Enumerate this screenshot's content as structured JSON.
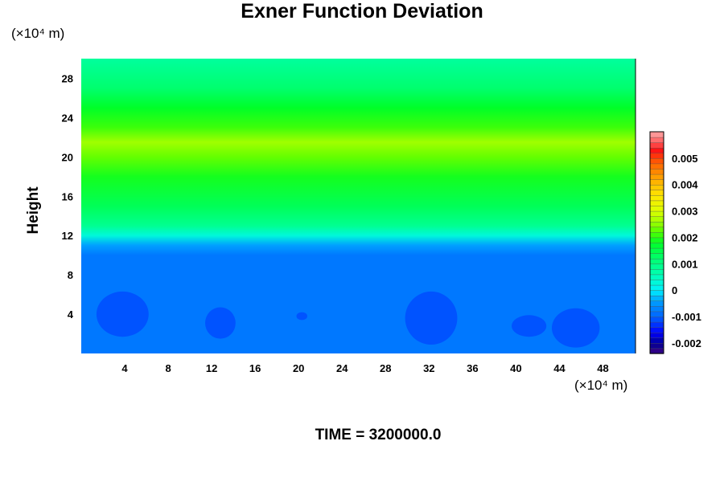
{
  "chart_data": {
    "type": "heatmap",
    "title": "Exner Function Deviation",
    "ylabel": "Height",
    "xlabel": "",
    "x_unit": "(×10⁴ m)",
    "y_unit": "(×10⁴ m)",
    "footer": "TIME = 3200000.0",
    "xlim": [
      0,
      51
    ],
    "ylim": [
      0,
      30
    ],
    "x_ticks": [
      "4",
      "8",
      "12",
      "16",
      "20",
      "24",
      "28",
      "32",
      "36",
      "40",
      "44",
      "48"
    ],
    "y_ticks": [
      "4",
      "8",
      "12",
      "16",
      "20",
      "24",
      "28"
    ],
    "colorbar": {
      "range": [
        -0.0024,
        0.006
      ],
      "ticks": [
        "0.005",
        "0.004",
        "0.003",
        "0.002",
        "0.001",
        "0",
        "-0.001",
        "-0.002"
      ],
      "tick_values": [
        0.005,
        0.004,
        0.003,
        0.002,
        0.001,
        0,
        -0.001,
        -0.002
      ]
    },
    "vertical_profile": [
      {
        "height": 0,
        "value": -0.0008
      },
      {
        "height": 10,
        "value": -0.0008
      },
      {
        "height": 11,
        "value": -0.0004
      },
      {
        "height": 12,
        "value": 0.0003
      },
      {
        "height": 13,
        "value": 0.0009
      },
      {
        "height": 15,
        "value": 0.0014
      },
      {
        "height": 18,
        "value": 0.0019
      },
      {
        "height": 20,
        "value": 0.0023
      },
      {
        "height": 21.5,
        "value": 0.0026
      },
      {
        "height": 23,
        "value": 0.0021
      },
      {
        "height": 25,
        "value": 0.0018
      },
      {
        "height": 27,
        "value": 0.0012
      },
      {
        "height": 30,
        "value": 0.0008
      }
    ],
    "anomalies": [
      {
        "x": 3.8,
        "y": 4.0,
        "rx": 2.4,
        "ry": 2.3,
        "value": -0.0011
      },
      {
        "x": 12.8,
        "y": 3.1,
        "rx": 1.4,
        "ry": 1.6,
        "value": -0.0011
      },
      {
        "x": 20.3,
        "y": 3.8,
        "rx": 0.5,
        "ry": 0.4,
        "value": -0.0011
      },
      {
        "x": 32.2,
        "y": 3.6,
        "rx": 2.4,
        "ry": 2.7,
        "value": -0.0011
      },
      {
        "x": 41.2,
        "y": 2.8,
        "rx": 1.6,
        "ry": 1.1,
        "value": -0.0011
      },
      {
        "x": 45.5,
        "y": 2.6,
        "rx": 2.2,
        "ry": 2.0,
        "value": -0.0011
      }
    ]
  }
}
